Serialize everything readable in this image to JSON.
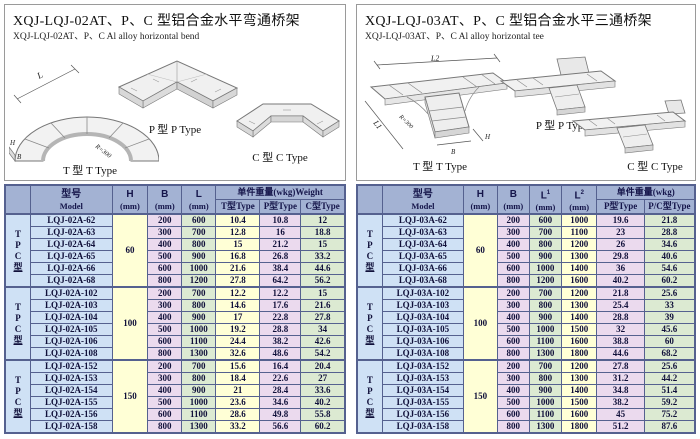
{
  "colors": {
    "header_bg": "#a3b2d3",
    "model_col": "#cfe1f5",
    "yellow_col": "#ffffd6",
    "lavender_col": "#ebdaee",
    "green_col": "#dcead2",
    "grid_border": "#55618f"
  },
  "panels": [
    {
      "title": "XQJ-LQJ-02AT、P、C 型铝合金水平弯通桥架",
      "subtitle": "XQJ-LQJ-02AT、P、C Al alloy horizontal bend",
      "figures": {
        "t": "T 型 T Type",
        "p": "P 型 P Type",
        "c": "C 型 C Type",
        "dims": {
          "L": "L",
          "H": "H",
          "B": "B",
          "R": "R=300"
        }
      },
      "table": {
        "side_label": [
          "T",
          "P",
          "C",
          "型"
        ],
        "model_cn": "型号",
        "model_en": "Model",
        "h_label": "H",
        "unit": "(mm)",
        "dim_cols": [
          "B",
          "L"
        ],
        "weight_title": "单件重量(wkg)Weight",
        "weight_cols": [
          "T型Type",
          "P型Type",
          "C型Type"
        ],
        "groups": [
          {
            "h": "60",
            "rows": [
              [
                "LQJ-02A-62",
                "200",
                "600",
                "10.4",
                "10.8",
                "12"
              ],
              [
                "LQJ-02A-63",
                "300",
                "700",
                "12.8",
                "16",
                "18.8"
              ],
              [
                "LQJ-02A-64",
                "400",
                "800",
                "15",
                "21.2",
                "15"
              ],
              [
                "LQJ-02A-65",
                "500",
                "900",
                "16.8",
                "26.8",
                "33.2"
              ],
              [
                "LQJ-02A-66",
                "600",
                "1000",
                "21.6",
                "38.4",
                "44.6"
              ],
              [
                "LQJ-02A-68",
                "800",
                "1200",
                "27.8",
                "64.2",
                "56.2"
              ]
            ]
          },
          {
            "h": "100",
            "rows": [
              [
                "LQJ-02A-102",
                "200",
                "700",
                "12.2",
                "12.2",
                "15"
              ],
              [
                "LQJ-02A-103",
                "300",
                "800",
                "14.6",
                "17.6",
                "21.6"
              ],
              [
                "LQJ-02A-104",
                "400",
                "900",
                "17",
                "22.8",
                "27.8"
              ],
              [
                "LQJ-02A-105",
                "500",
                "1000",
                "19.2",
                "28.8",
                "34"
              ],
              [
                "LQJ-02A-106",
                "600",
                "1100",
                "24.4",
                "38.2",
                "42.6"
              ],
              [
                "LQJ-02A-108",
                "800",
                "1300",
                "32.6",
                "48.6",
                "54.2"
              ]
            ]
          },
          {
            "h": "150",
            "rows": [
              [
                "LQJ-02A-152",
                "200",
                "700",
                "15.6",
                "16.4",
                "20.4"
              ],
              [
                "LQJ-02A-153",
                "300",
                "800",
                "18.4",
                "22.6",
                "27"
              ],
              [
                "LQJ-02A-154",
                "400",
                "900",
                "21",
                "28.4",
                "33.6"
              ],
              [
                "LQJ-02A-155",
                "500",
                "1000",
                "23.6",
                "34.6",
                "40.2"
              ],
              [
                "LQJ-02A-156",
                "600",
                "1100",
                "28.6",
                "49.8",
                "55.8"
              ],
              [
                "LQJ-02A-158",
                "800",
                "1300",
                "33.2",
                "56.6",
                "60.2"
              ]
            ]
          }
        ]
      }
    },
    {
      "title": "XQJ-LQJ-03AT、P、C 型铝合金水平三通桥架",
      "subtitle": "XQJ-LQJ-03AT、P、C Al alloy horizontal tee",
      "figures": {
        "t": "T 型 T Type",
        "p": "P 型 P Type",
        "c": "C 型 C Type",
        "dims": {
          "L1": "L1",
          "L2": "L2",
          "H": "H",
          "B": "B",
          "R": "R=300"
        }
      },
      "table": {
        "side_label": [
          "T",
          "P",
          "C",
          "型"
        ],
        "model_cn": "型号",
        "model_en": "Model",
        "h_label": "H",
        "unit": "(mm)",
        "dim_cols": [
          "B",
          "L1",
          "L2"
        ],
        "weight_title": "单件重量(wkg)",
        "weight_cols": [
          "P型Type",
          "P/C型Type"
        ],
        "groups": [
          {
            "h": "60",
            "rows": [
              [
                "LQJ-03A-62",
                "200",
                "600",
                "1000",
                "19.6",
                "21.8"
              ],
              [
                "LQJ-03A-63",
                "300",
                "700",
                "1100",
                "23",
                "28.8"
              ],
              [
                "LQJ-03A-64",
                "400",
                "800",
                "1200",
                "26",
                "34.6"
              ],
              [
                "LQJ-03A-65",
                "500",
                "900",
                "1300",
                "29.8",
                "40.6"
              ],
              [
                "LQJ-03A-66",
                "600",
                "1000",
                "1400",
                "36",
                "54.6"
              ],
              [
                "LQJ-03A-68",
                "800",
                "1200",
                "1600",
                "40.2",
                "60.2"
              ]
            ]
          },
          {
            "h": "100",
            "rows": [
              [
                "LQJ-03A-102",
                "200",
                "700",
                "1200",
                "21.8",
                "25.6"
              ],
              [
                "LQJ-03A-103",
                "300",
                "800",
                "1300",
                "25.4",
                "33"
              ],
              [
                "LQJ-03A-104",
                "400",
                "900",
                "1400",
                "28.8",
                "39"
              ],
              [
                "LQJ-03A-105",
                "500",
                "1000",
                "1500",
                "32",
                "45.6"
              ],
              [
                "LQJ-03A-106",
                "600",
                "1100",
                "1600",
                "38.8",
                "60"
              ],
              [
                "LQJ-03A-108",
                "800",
                "1300",
                "1800",
                "44.6",
                "68.2"
              ]
            ]
          },
          {
            "h": "150",
            "rows": [
              [
                "LQJ-03A-152",
                "200",
                "700",
                "1200",
                "27.8",
                "25.6"
              ],
              [
                "LQJ-03A-153",
                "300",
                "800",
                "1300",
                "31.2",
                "44.2"
              ],
              [
                "LQJ-03A-154",
                "400",
                "900",
                "1400",
                "34.8",
                "51.4"
              ],
              [
                "LQJ-03A-155",
                "500",
                "1000",
                "1500",
                "38.2",
                "59.2"
              ],
              [
                "LQJ-03A-156",
                "600",
                "1100",
                "1600",
                "45",
                "75.2"
              ],
              [
                "LQJ-03A-158",
                "800",
                "1300",
                "1800",
                "51.2",
                "87.6"
              ]
            ]
          }
        ]
      }
    }
  ]
}
